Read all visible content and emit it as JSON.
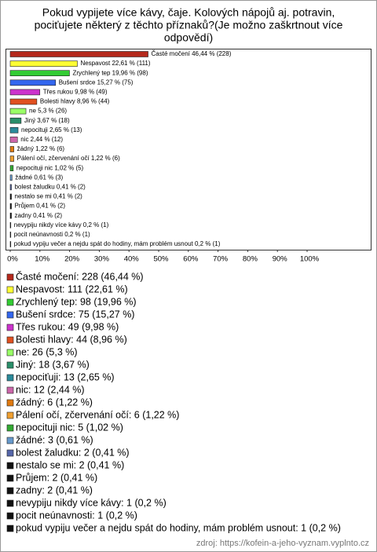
{
  "chart_data": {
    "type": "hbar",
    "title": [
      "Pokud vypijete více kávy, čaje. Kolových nápojů aj. potravin,",
      "pociťujete některý z těchto příznaků?(Je možno zaškrtnout více",
      "odpovědí)"
    ],
    "values": [
      46.44,
      22.61,
      19.96,
      15.27,
      9.98,
      8.96,
      5.3,
      3.67,
      2.65,
      2.44,
      1.22,
      1.22,
      1.02,
      0.61,
      0.41,
      0.41,
      0.41,
      0.41,
      0.2,
      0.2,
      0.2
    ],
    "value_labels": [
      "Časté močení 46,44 % (228)",
      "Nespavost 22,61 % (111)",
      "Zrychlený tep 19,96 % (98)",
      "Bušení srdce 15,27 % (75)",
      "Třes rukou 9,98 % (49)",
      "Bolesti hlavy 8,96 % (44)",
      "ne 5,3 % (26)",
      "Jiný 3,67 % (18)",
      "nepocituji 2,65 % (13)",
      "nic 2,44 % (12)",
      "žádný 1,22 % (6)",
      "Pálení očí, zčervenání očí 1,22 % (6)",
      "nepocituji nic 1,02 % (5)",
      "žádné 0,61 % (3)",
      "bolest žaludku 0,41 % (2)",
      "nestalo se mi 0,41 % (2)",
      "Průjem 0,41 % (2)",
      "zadny 0,41 % (2)",
      "nevypiju nikdy více kávy 0,2 % (1)",
      "pocit neúnavnosti 0,2 % (1)",
      "pokud vypiju večer a nejdu spát do hodiny, mám problém usnout 0,2 % (1)"
    ],
    "legend_labels": [
      "Časté močení: 228 (46,44 %)",
      "Nespavost: 111 (22,61 %)",
      "Zrychlený tep: 98 (19,96 %)",
      "Bušení srdce: 75 (15,27 %)",
      "Třes rukou: 49 (9,98 %)",
      "Bolesti hlavy: 44 (8,96 %)",
      "ne: 26 (5,3 %)",
      "Jiný: 18 (3,67 %)",
      "nepociťuji: 13 (2,65 %)",
      "nic: 12 (2,44 %)",
      "žádný: 6 (1,22 %)",
      "Pálení očí, zčervenání očí: 6 (1,22 %)",
      "nepocituji nic: 5 (1,02 %)",
      "žádné: 3 (0,61 %)",
      "bolest žaludku: 2 (0,41 %)",
      "nestalo se mi: 2 (0,41 %)",
      "Průjem: 2 (0,41 %)",
      "zadny: 2 (0,41 %)",
      "nevypiju nikdy více kávy: 1 (0,2 %)",
      "pocit neúnavnosti: 1 (0,2 %)",
      "pokud vypiju večer a nejdu spát do hodiny, mám problém usnout: 1 (0,2 %)"
    ],
    "colors": [
      "#b5291c",
      "#ffff33",
      "#33cc33",
      "#3366ee",
      "#cc33cc",
      "#e05020",
      "#99ff66",
      "#2a8f6a",
      "#2a8a9a",
      "#cc66aa",
      "#e07a10",
      "#f0a030",
      "#33aa33",
      "#6699cc",
      "#5566aa",
      "#111111",
      "#111111",
      "#111111",
      "#111111",
      "#111111",
      "#111111"
    ],
    "xlim": [
      0,
      100
    ],
    "xticks": [
      {
        "value": 0,
        "label": "0%"
      },
      {
        "value": 10,
        "label": "10%"
      },
      {
        "value": 20,
        "label": "20%"
      },
      {
        "value": 30,
        "label": "30%"
      },
      {
        "value": 40,
        "label": "40%"
      },
      {
        "value": 50,
        "label": "50%"
      },
      {
        "value": 60,
        "label": "60%"
      },
      {
        "value": 70,
        "label": "70%"
      },
      {
        "value": 80,
        "label": "80%"
      },
      {
        "value": 90,
        "label": "90%"
      },
      {
        "value": 100,
        "label": "100%"
      }
    ],
    "source": "zdroj: https://kofein-a-jeho-vyznam.vyplnto.cz"
  }
}
